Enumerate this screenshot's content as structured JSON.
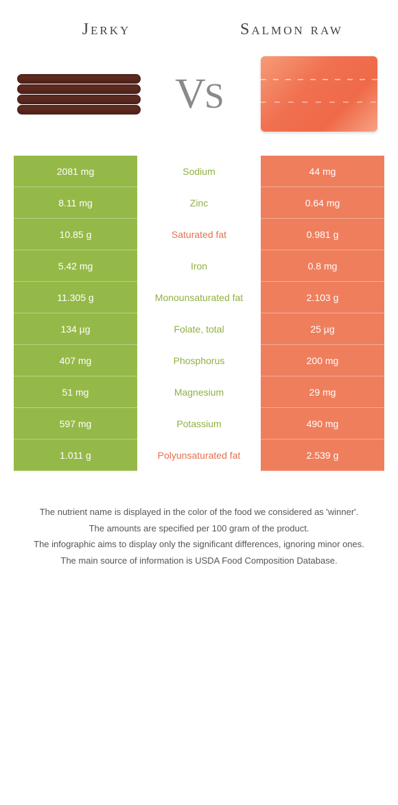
{
  "colors": {
    "left": "#95b948",
    "right": "#ef7e5d",
    "nutrient_left_text": "#8fb041",
    "nutrient_right_text": "#e4704f"
  },
  "header": {
    "left": "Jerky",
    "right": "Salmon raw",
    "vs": "vs"
  },
  "table": {
    "rows": [
      {
        "left": "2081 mg",
        "mid": "Sodium",
        "right": "44 mg",
        "winner": "left"
      },
      {
        "left": "8.11 mg",
        "mid": "Zinc",
        "right": "0.64 mg",
        "winner": "left"
      },
      {
        "left": "10.85 g",
        "mid": "Saturated fat",
        "right": "0.981 g",
        "winner": "right"
      },
      {
        "left": "5.42 mg",
        "mid": "Iron",
        "right": "0.8 mg",
        "winner": "left"
      },
      {
        "left": "11.305 g",
        "mid": "Monounsaturated fat",
        "right": "2.103 g",
        "winner": "left"
      },
      {
        "left": "134 µg",
        "mid": "Folate, total",
        "right": "25 µg",
        "winner": "left"
      },
      {
        "left": "407 mg",
        "mid": "Phosphorus",
        "right": "200 mg",
        "winner": "left"
      },
      {
        "left": "51 mg",
        "mid": "Magnesium",
        "right": "29 mg",
        "winner": "left"
      },
      {
        "left": "597 mg",
        "mid": "Potassium",
        "right": "490 mg",
        "winner": "left"
      },
      {
        "left": "1.011 g",
        "mid": "Polyunsaturated fat",
        "right": "2.539 g",
        "winner": "right"
      }
    ]
  },
  "footer": {
    "line1": "The nutrient name is displayed in the color of the food we considered as 'winner'.",
    "line2": "The amounts are specified per 100 gram of the product.",
    "line3": "The infographic aims to display only the significant differences, ignoring minor ones.",
    "line4": "The main source of information is USDA Food Composition Database."
  }
}
